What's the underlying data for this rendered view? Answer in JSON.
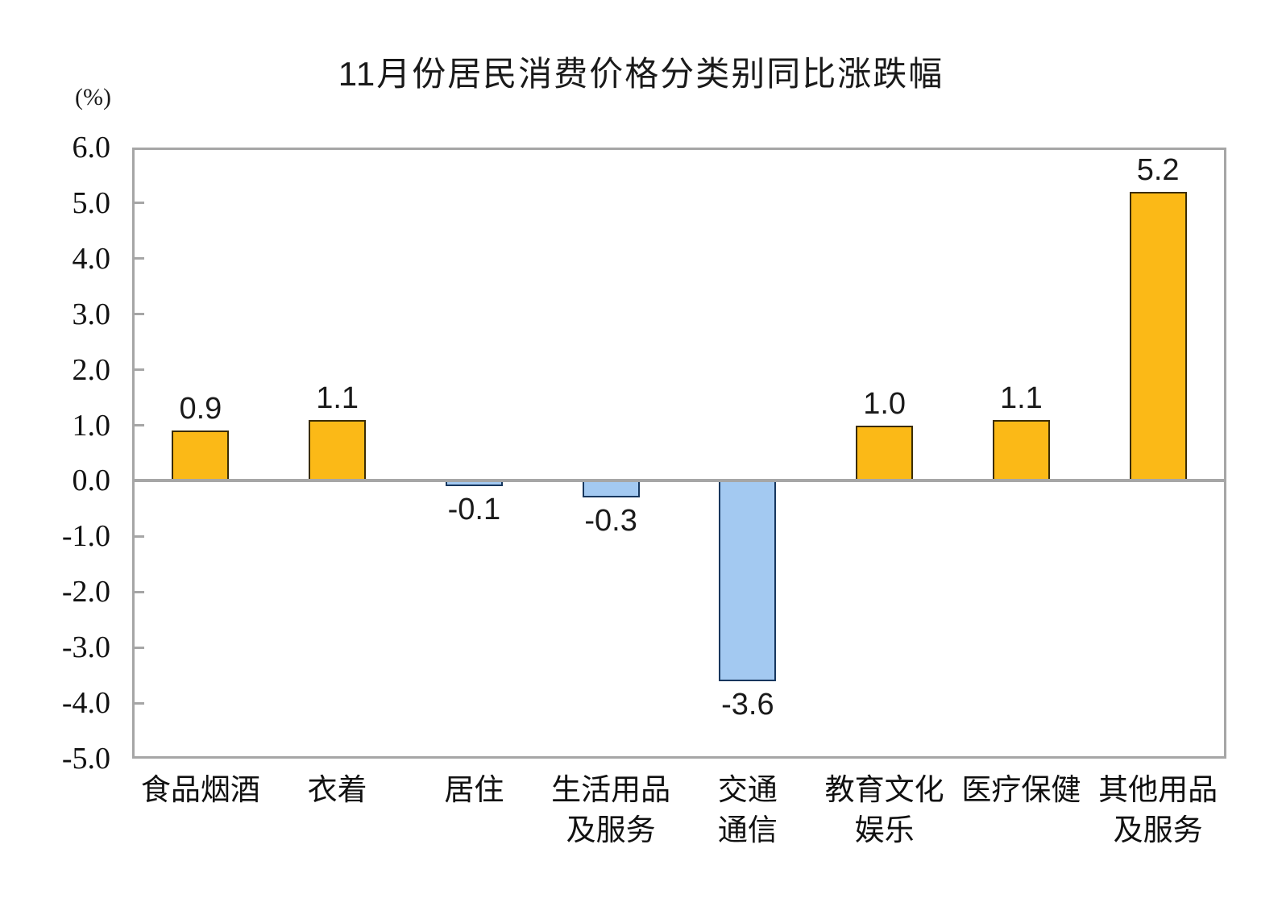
{
  "chart_data": {
    "type": "bar",
    "title": "11月份居民消费价格分类别同比涨跌幅",
    "unit_label": "(%)",
    "categories": [
      "食品烟酒",
      "衣着",
      "居住",
      "生活用品及服务",
      "交通通信",
      "教育文化娱乐",
      "医疗保健",
      "其他用品及服务"
    ],
    "category_lines": [
      [
        "食品烟酒"
      ],
      [
        "衣着"
      ],
      [
        "居住"
      ],
      [
        "生活用品",
        "及服务"
      ],
      [
        "交通",
        "通信"
      ],
      [
        "教育文化",
        "娱乐"
      ],
      [
        "医疗保健"
      ],
      [
        "其他用品",
        "及服务"
      ]
    ],
    "values": [
      0.9,
      1.1,
      -0.1,
      -0.3,
      -3.6,
      1.0,
      1.1,
      5.2
    ],
    "value_labels": [
      "0.9",
      "1.1",
      "-0.1",
      "-0.3",
      "-3.6",
      "1.0",
      "1.1",
      "5.2"
    ],
    "ylabel": "",
    "xlabel": "",
    "ylim": [
      -5.0,
      6.0
    ],
    "ytick_step": 1.0,
    "ytick_labels": [
      "6.0",
      "5.0",
      "4.0",
      "3.0",
      "2.0",
      "1.0",
      "0.0",
      "-1.0",
      "-2.0",
      "-3.0",
      "-4.0",
      "-5.0"
    ],
    "grid": false,
    "legend": "none",
    "colors": {
      "positive_bar": "#FBB917",
      "positive_border": "#3A2C06",
      "negative_bar": "#A3C9F1",
      "negative_border": "#17375E",
      "axis_border": "#A6A6A6",
      "zero_line": "#A6A6A6",
      "text": "#1A1A1A",
      "background": "#FFFFFF"
    }
  }
}
